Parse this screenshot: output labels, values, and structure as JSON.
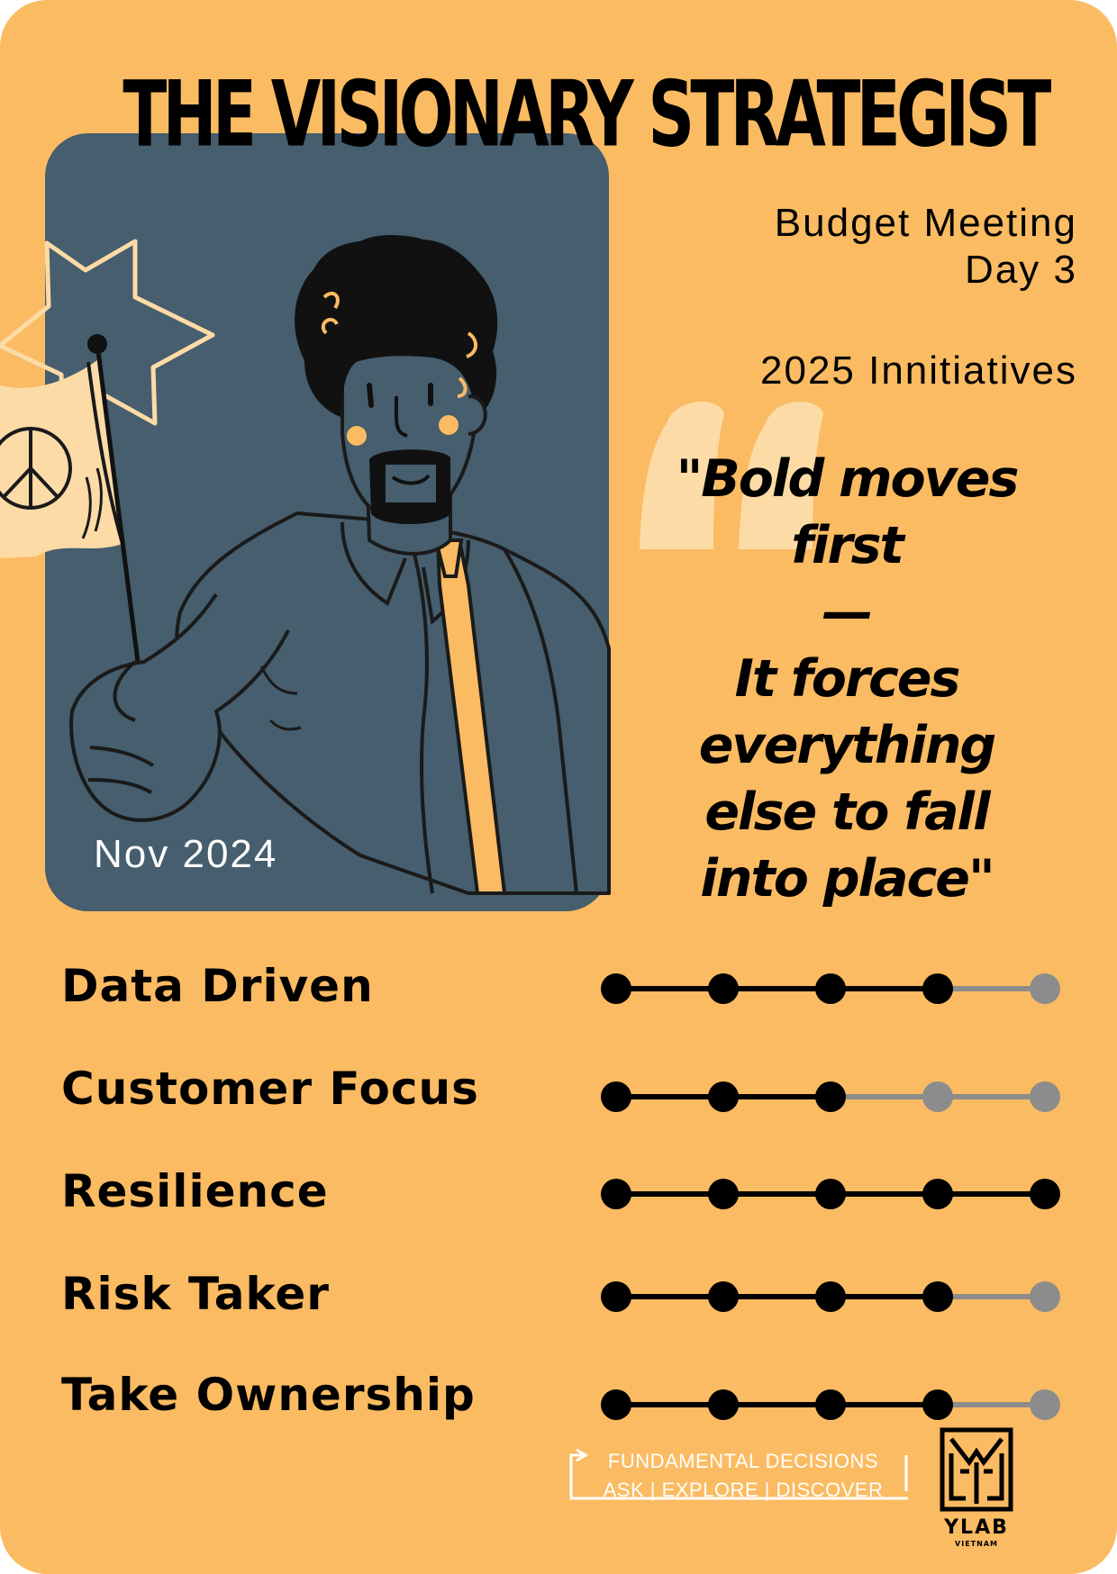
{
  "card": {
    "title": "THE VISIONARY STRATEGIST",
    "colors": {
      "background": "#FBBB62",
      "portrait_bg": "#465E6E",
      "accent": "#FDDBA6",
      "track_inactive": "#8C8C8C",
      "ink": "#000000"
    }
  },
  "portrait": {
    "date": "Nov 2024",
    "icons": [
      "flag-icon",
      "peace-sign-icon",
      "starburst-icon",
      "person-illustration"
    ]
  },
  "meta": {
    "event_line1": "Budget Meeting",
    "event_line2": "Day 3",
    "initiatives": "2025 Innitiatives"
  },
  "quote": {
    "lines": [
      "\"Bold moves",
      "first",
      "—",
      "It forces",
      "everything",
      "else to fall",
      "into place\""
    ]
  },
  "skills": [
    {
      "name": "Data Driven",
      "level": 4,
      "max": 5
    },
    {
      "name": "Customer Focus",
      "level": 3,
      "max": 5
    },
    {
      "name": "Resilience",
      "level": 5,
      "max": 5
    },
    {
      "name": "Risk Taker",
      "level": 4,
      "max": 5
    },
    {
      "name": "Take Ownership",
      "level": 4,
      "max": 5
    }
  ],
  "footer": {
    "line1": "FUNDAMENTAL DECISIONS",
    "line2": "ASK | EXPLORE | DISCOVER",
    "logo_text": "YLAB",
    "logo_subtext": "VIETNAM"
  }
}
